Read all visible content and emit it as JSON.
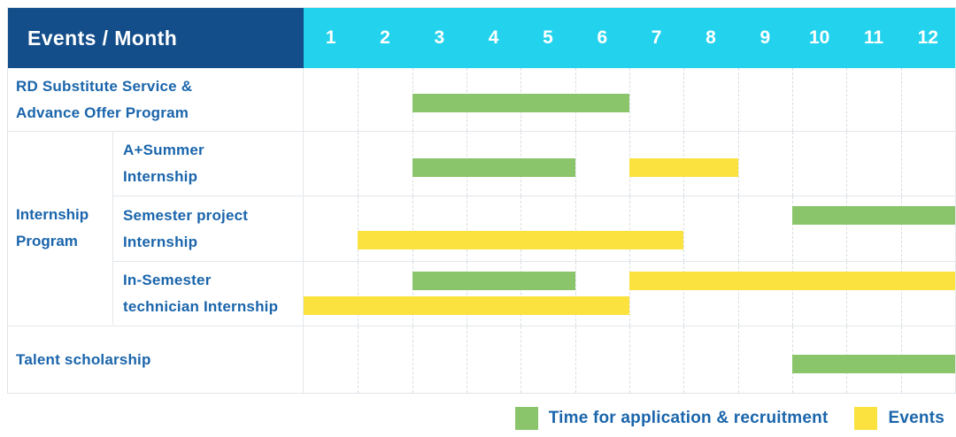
{
  "table": {
    "corner_title": "Events / Month"
  },
  "colors": {
    "navy_header_bg": "#134E8A",
    "cyan_months_bg": "#23D2EC",
    "recruitment": "#8BC56B",
    "events": "#FCE23E",
    "label_text": "#1A65AB",
    "grid_line": "#E4E7EA"
  },
  "chart_data": {
    "type": "bar",
    "subtype": "gantt",
    "title": "Events / Month",
    "x_axis_label": "Month",
    "x_ticks": [
      "1",
      "2",
      "3",
      "4",
      "5",
      "6",
      "7",
      "8",
      "9",
      "10",
      "11",
      "12"
    ],
    "x_range": [
      1,
      12
    ],
    "grid": "dashed-vertical",
    "rows": [
      {
        "group": null,
        "label": "RD Substitute Service & Advance Offer Program",
        "label_lines": [
          "RD Substitute Service &",
          "Advance Offer Program"
        ],
        "lanes": 1,
        "bars": [
          {
            "series": "recruitment",
            "start_month": 3,
            "end_month": 6,
            "lane": 0
          }
        ]
      },
      {
        "group": "Internship Program",
        "label": "A+Summer Internship",
        "label_lines": [
          "A+Summer",
          "Internship"
        ],
        "lanes": 1,
        "bars": [
          {
            "series": "recruitment",
            "start_month": 3,
            "end_month": 5,
            "lane": 0
          },
          {
            "series": "events",
            "start_month": 7,
            "end_month": 8,
            "lane": 0
          }
        ]
      },
      {
        "group": "Internship Program",
        "label": "Semester project Internship",
        "label_lines": [
          "Semester project",
          "Internship"
        ],
        "lanes": 2,
        "bars": [
          {
            "series": "recruitment",
            "start_month": 10,
            "end_month": 12,
            "lane": 0
          },
          {
            "series": "events",
            "start_month": 2,
            "end_month": 7,
            "lane": 1
          }
        ]
      },
      {
        "group": "Internship Program",
        "label": "In-Semester technician Internship",
        "label_lines": [
          "In-Semester",
          "technician Internship"
        ],
        "lanes": 2,
        "bars": [
          {
            "series": "recruitment",
            "start_month": 3,
            "end_month": 5,
            "lane": 0
          },
          {
            "series": "events",
            "start_month": 7,
            "end_month": 12,
            "lane": 0
          },
          {
            "series": "events",
            "start_month": 1,
            "end_month": 6,
            "lane": 1
          }
        ]
      },
      {
        "group": null,
        "label": "Talent scholarship",
        "label_lines": [
          "Talent scholarship"
        ],
        "lanes": 1,
        "bars": [
          {
            "series": "recruitment",
            "start_month": 10,
            "end_month": 12,
            "lane": 0
          }
        ]
      }
    ],
    "groups": [
      {
        "label": "Internship Program",
        "label_lines": [
          "Internship",
          "Program"
        ],
        "start_row": 1,
        "end_row": 3
      }
    ],
    "legend": [
      {
        "key": "recruitment",
        "label": "Time for application & recruitment",
        "color": "#8BC56B"
      },
      {
        "key": "events",
        "label": "Events",
        "color": "#FCE23E"
      }
    ],
    "legend_position": "bottom-right"
  }
}
